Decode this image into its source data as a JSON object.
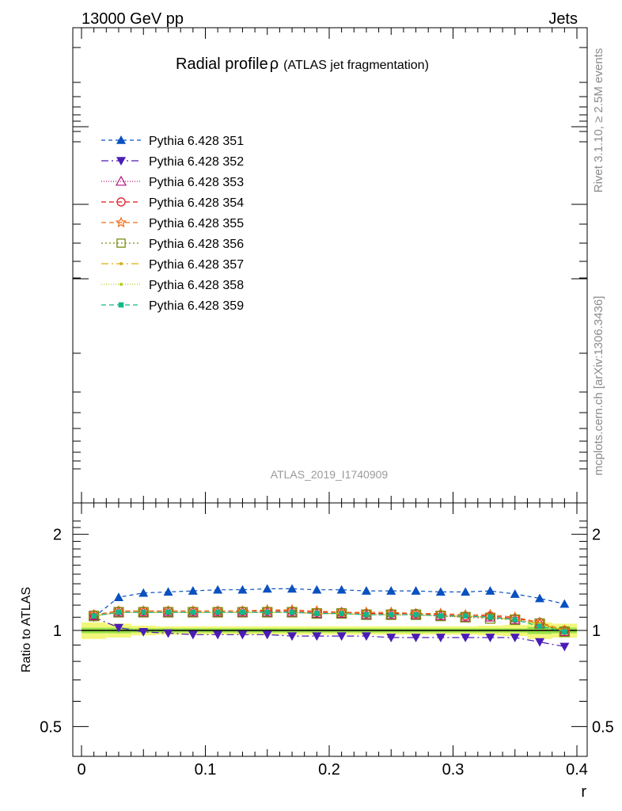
{
  "header": {
    "left": "13000 GeV pp",
    "right": "Jets"
  },
  "side_labels": {
    "rivet": "Rivet 3.1.10, ≥ 2.5M events",
    "mcplots": "mcplots.cern.ch [arXiv:1306.3436]"
  },
  "watermark": "ATLAS_2019_I1740909",
  "chart_data": {
    "type": "line",
    "title": "Radial profile",
    "title_symbol": "ρ",
    "subtitle": "(ATLAS jet fragmentation)",
    "xlabel": "r",
    "ylabel": "Ratio to ATLAS",
    "xlim": [
      0,
      0.4
    ],
    "ylim_ratio": [
      0.4,
      2.3
    ],
    "ratio_scale": "log",
    "x_ticks": [
      {
        "value": 0,
        "label": "0"
      },
      {
        "value": 0.1,
        "label": "0.1"
      },
      {
        "value": 0.2,
        "label": "0.2"
      },
      {
        "value": 0.3,
        "label": "0.3"
      },
      {
        "value": 0.4,
        "label": "0.4"
      }
    ],
    "y_ticks": [
      {
        "value": 0.5,
        "label": "0.5"
      },
      {
        "value": 1,
        "label": "1"
      },
      {
        "value": 2,
        "label": "2"
      }
    ],
    "x": [
      0.01,
      0.03,
      0.05,
      0.07,
      0.09,
      0.11,
      0.13,
      0.15,
      0.17,
      0.19,
      0.21,
      0.23,
      0.25,
      0.27,
      0.29,
      0.31,
      0.33,
      0.35,
      0.37,
      0.39
    ],
    "reference_band": {
      "center": 1.0,
      "inner_halfwidth": [
        0.02,
        0.02,
        0.015,
        0.015,
        0.015,
        0.015,
        0.015,
        0.015,
        0.015,
        0.015,
        0.015,
        0.015,
        0.015,
        0.015,
        0.015,
        0.015,
        0.015,
        0.015,
        0.025,
        0.02
      ],
      "outer_halfwidth": [
        0.06,
        0.05,
        0.035,
        0.03,
        0.03,
        0.03,
        0.03,
        0.03,
        0.03,
        0.03,
        0.03,
        0.03,
        0.03,
        0.03,
        0.03,
        0.03,
        0.035,
        0.04,
        0.06,
        0.05
      ],
      "inner_color": "#96e04a",
      "outer_color": "#f2f77a",
      "line_color": "#000000"
    },
    "series": [
      {
        "name": "Pythia 6.428 351",
        "color": "#0a50c0",
        "marker": "triangle-up",
        "dash": "5,4",
        "values": [
          1.1,
          1.27,
          1.31,
          1.32,
          1.33,
          1.34,
          1.34,
          1.35,
          1.35,
          1.34,
          1.34,
          1.33,
          1.33,
          1.33,
          1.32,
          1.32,
          1.33,
          1.3,
          1.26,
          1.21
        ]
      },
      {
        "name": "Pythia 6.428 352",
        "color": "#4b1bb5",
        "marker": "triangle-down",
        "dash": "9,4,2,4",
        "values": [
          1.1,
          1.02,
          0.99,
          0.98,
          0.97,
          0.97,
          0.97,
          0.97,
          0.96,
          0.96,
          0.96,
          0.96,
          0.95,
          0.95,
          0.95,
          0.95,
          0.95,
          0.95,
          0.92,
          0.89
        ]
      },
      {
        "name": "Pythia 6.428 353",
        "color": "#b4127c",
        "marker": "triangle-open",
        "dash": "1,2",
        "values": [
          1.11,
          1.14,
          1.14,
          1.14,
          1.14,
          1.14,
          1.14,
          1.14,
          1.14,
          1.13,
          1.13,
          1.12,
          1.12,
          1.12,
          1.11,
          1.1,
          1.1,
          1.08,
          1.05,
          0.99
        ]
      },
      {
        "name": "Pythia 6.428 354",
        "color": "#e3101a",
        "marker": "circle-open",
        "dash": "6,4",
        "values": [
          1.12,
          1.15,
          1.15,
          1.15,
          1.15,
          1.15,
          1.15,
          1.15,
          1.15,
          1.14,
          1.14,
          1.13,
          1.13,
          1.13,
          1.12,
          1.11,
          1.11,
          1.09,
          1.06,
          1.0
        ]
      },
      {
        "name": "Pythia 6.428 355",
        "color": "#f06a10",
        "marker": "star-open",
        "dash": "6,4",
        "values": [
          1.12,
          1.15,
          1.15,
          1.15,
          1.15,
          1.15,
          1.15,
          1.16,
          1.16,
          1.15,
          1.14,
          1.14,
          1.14,
          1.13,
          1.13,
          1.12,
          1.12,
          1.1,
          1.06,
          1.0
        ]
      },
      {
        "name": "Pythia 6.428 356",
        "color": "#7a8a10",
        "marker": "square-open",
        "dash": "2,3",
        "values": [
          1.11,
          1.14,
          1.14,
          1.14,
          1.14,
          1.14,
          1.14,
          1.14,
          1.14,
          1.13,
          1.13,
          1.12,
          1.12,
          1.12,
          1.11,
          1.1,
          1.09,
          1.08,
          1.05,
          0.99
        ]
      },
      {
        "name": "Pythia 6.428 357",
        "color": "#d9b010",
        "marker": "dot",
        "dash": "9,4,2,4",
        "values": [
          1.11,
          1.14,
          1.14,
          1.14,
          1.14,
          1.14,
          1.14,
          1.14,
          1.14,
          1.13,
          1.13,
          1.12,
          1.12,
          1.12,
          1.11,
          1.11,
          1.1,
          1.08,
          1.05,
          1.0
        ]
      },
      {
        "name": "Pythia 6.428 358",
        "color": "#b6cf16",
        "marker": "dot",
        "dash": "1,2",
        "values": [
          1.11,
          1.14,
          1.14,
          1.14,
          1.14,
          1.14,
          1.14,
          1.14,
          1.14,
          1.13,
          1.13,
          1.12,
          1.12,
          1.12,
          1.11,
          1.11,
          1.1,
          1.08,
          1.05,
          1.0
        ]
      },
      {
        "name": "Pythia 6.428 359",
        "color": "#12b88c",
        "marker": "square",
        "dash": "6,4",
        "values": [
          1.11,
          1.14,
          1.14,
          1.14,
          1.14,
          1.14,
          1.14,
          1.14,
          1.14,
          1.13,
          1.13,
          1.12,
          1.12,
          1.12,
          1.11,
          1.11,
          1.1,
          1.08,
          1.03,
          0.99
        ]
      }
    ]
  }
}
